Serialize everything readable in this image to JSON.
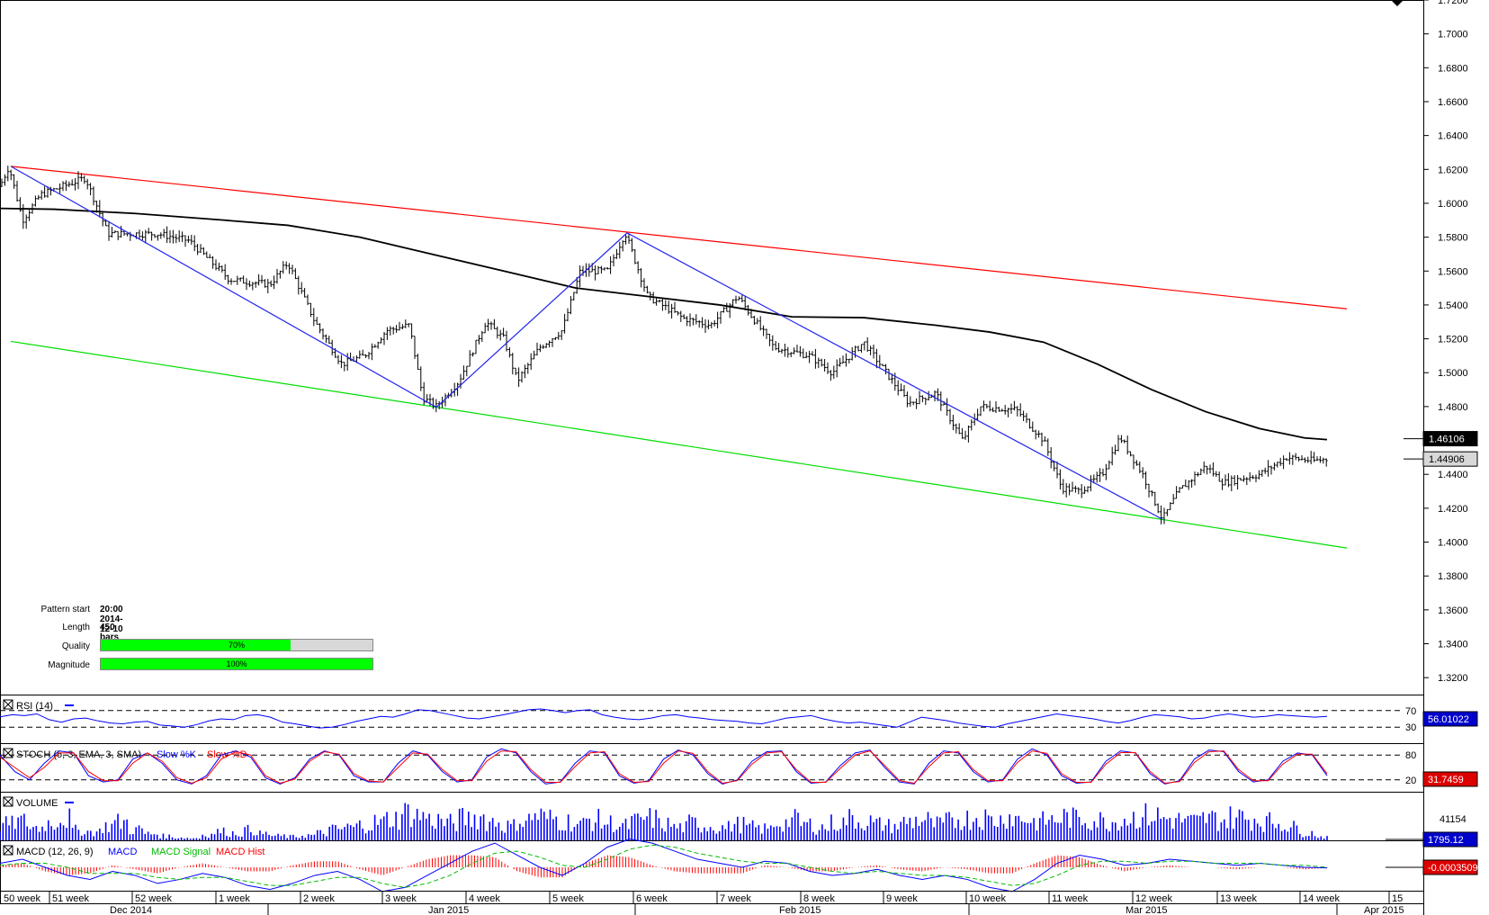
{
  "chart_data": [
    {
      "type": "candlestick",
      "pattern_info": {
        "pattern_start_label": "Pattern start",
        "pattern_start": "20:00 2014-12-10",
        "length_label": "Length",
        "length": "450 bars",
        "quality_label": "Quality",
        "quality": "70%",
        "quality_value": 0.7,
        "magnitude_label": "Magnitude",
        "magnitude": "100%",
        "magnitude_value": 1.0
      },
      "ylim": [
        1.31,
        1.72
      ],
      "y_ticks": [
        "1.7200",
        "1.7000",
        "1.6800",
        "1.6600",
        "1.6400",
        "1.6200",
        "1.6000",
        "1.5800",
        "1.5600",
        "1.5400",
        "1.5200",
        "1.5000",
        "1.4800",
        "1.4600",
        "1.4400",
        "1.4200",
        "1.4000",
        "1.3800",
        "1.3600",
        "1.3400",
        "1.3200"
      ],
      "y_tick_values": [
        1.72,
        1.7,
        1.68,
        1.66,
        1.64,
        1.62,
        1.6,
        1.58,
        1.56,
        1.54,
        1.52,
        1.5,
        1.48,
        1.46,
        1.44,
        1.42,
        1.4,
        1.38,
        1.36,
        1.34,
        1.32
      ],
      "price_path": [
        [
          0,
          1.61
        ],
        [
          10,
          1.6218
        ],
        [
          25,
          1.59
        ],
        [
          45,
          1.605
        ],
        [
          95,
          1.615
        ],
        [
          120,
          1.582
        ],
        [
          175,
          1.582
        ],
        [
          210,
          1.578
        ],
        [
          255,
          1.555
        ],
        [
          300,
          1.552
        ],
        [
          320,
          1.565
        ],
        [
          350,
          1.53
        ],
        [
          380,
          1.505
        ],
        [
          405,
          1.51
        ],
        [
          430,
          1.525
        ],
        [
          455,
          1.528
        ],
        [
          470,
          1.485
        ],
        [
          485,
          1.48
        ],
        [
          510,
          1.495
        ],
        [
          540,
          1.53
        ],
        [
          560,
          1.52
        ],
        [
          575,
          1.495
        ],
        [
          600,
          1.515
        ],
        [
          625,
          1.525
        ],
        [
          645,
          1.56
        ],
        [
          675,
          1.56
        ],
        [
          695,
          1.5825
        ],
        [
          720,
          1.545
        ],
        [
          760,
          1.532
        ],
        [
          790,
          1.528
        ],
        [
          820,
          1.545
        ],
        [
          840,
          1.53
        ],
        [
          860,
          1.515
        ],
        [
          900,
          1.51
        ],
        [
          925,
          1.5
        ],
        [
          960,
          1.518
        ],
        [
          985,
          1.5
        ],
        [
          1010,
          1.482
        ],
        [
          1040,
          1.488
        ],
        [
          1070,
          1.46
        ],
        [
          1090,
          1.48
        ],
        [
          1130,
          1.478
        ],
        [
          1160,
          1.46
        ],
        [
          1180,
          1.432
        ],
        [
          1200,
          1.43
        ],
        [
          1225,
          1.44
        ],
        [
          1245,
          1.462
        ],
        [
          1270,
          1.44
        ],
        [
          1292,
          1.4135
        ],
        [
          1310,
          1.43
        ],
        [
          1340,
          1.445
        ],
        [
          1360,
          1.435
        ],
        [
          1400,
          1.44
        ],
        [
          1430,
          1.45
        ],
        [
          1460,
          1.448
        ],
        [
          1475,
          1.449
        ]
      ],
      "moving_average": [
        [
          0,
          1.597
        ],
        [
          60,
          1.5965
        ],
        [
          150,
          1.594
        ],
        [
          250,
          1.59
        ],
        [
          320,
          1.587
        ],
        [
          400,
          1.58
        ],
        [
          480,
          1.57
        ],
        [
          560,
          1.56
        ],
        [
          640,
          1.55
        ],
        [
          720,
          1.545
        ],
        [
          800,
          1.54
        ],
        [
          880,
          1.533
        ],
        [
          960,
          1.5325
        ],
        [
          1040,
          1.528
        ],
        [
          1100,
          1.524
        ],
        [
          1160,
          1.518
        ],
        [
          1220,
          1.505
        ],
        [
          1280,
          1.49
        ],
        [
          1340,
          1.477
        ],
        [
          1400,
          1.467
        ],
        [
          1450,
          1.4615
        ],
        [
          1475,
          1.4605
        ]
      ],
      "zigzag": [
        [
          12,
          1.6218
        ],
        [
          485,
          1.4796
        ],
        [
          697,
          1.5825
        ],
        [
          1292,
          1.4135
        ]
      ],
      "upper_channel": [
        [
          12,
          1.6218
        ],
        [
          1497,
          1.5377
        ]
      ],
      "lower_channel": [
        [
          12,
          1.5185
        ],
        [
          1497,
          1.3965
        ]
      ],
      "current_price": "1.44906",
      "current_price_value": 1.44906,
      "ma_value": "1.46106",
      "ma_value_num": 1.46106
    },
    {
      "type": "line",
      "title": "RSI (14)",
      "levels": [
        "70",
        "30"
      ],
      "level_values": [
        70,
        30
      ],
      "ylim": [
        0,
        100
      ],
      "current_value": "56.01022",
      "series": [
        {
          "color": "#0000ff",
          "values": [
            55,
            60,
            58,
            62,
            48,
            42,
            50,
            52,
            45,
            40,
            38,
            42,
            44,
            35,
            33,
            30,
            36,
            45,
            50,
            48,
            58,
            60,
            54,
            42,
            38,
            33,
            28,
            30,
            36,
            44,
            50,
            56,
            54,
            62,
            72,
            70,
            64,
            58,
            52,
            50,
            55,
            60,
            66,
            72,
            74,
            70,
            65,
            70,
            72,
            60,
            54,
            50,
            48,
            52,
            58,
            60,
            55,
            52,
            48,
            46,
            44,
            40,
            38,
            45,
            52,
            55,
            58,
            50,
            44,
            40,
            42,
            38,
            34,
            30,
            42,
            54,
            50,
            46,
            40,
            36,
            32,
            30,
            38,
            44,
            50,
            56,
            62,
            58,
            54,
            50,
            44,
            40,
            46,
            54,
            60,
            58,
            55,
            50,
            52,
            58,
            62,
            58,
            54,
            56,
            60,
            58,
            56,
            54,
            56
          ]
        }
      ]
    },
    {
      "type": "line",
      "title": "STOCH (5, 3, EMA, 3, SMA)",
      "legend": [
        "Slow %K",
        "Slow %D"
      ],
      "levels": [
        "80",
        "20"
      ],
      "level_values": [
        80,
        20
      ],
      "ylim": [
        0,
        100
      ],
      "current_value": "31.7459",
      "series": [
        {
          "name": "Slow %K",
          "color": "#0000ff",
          "values": [
            80,
            40,
            20,
            60,
            90,
            85,
            30,
            15,
            20,
            70,
            85,
            60,
            20,
            10,
            30,
            80,
            90,
            75,
            25,
            10,
            25,
            70,
            90,
            80,
            30,
            15,
            15,
            60,
            90,
            80,
            40,
            15,
            20,
            75,
            95,
            85,
            40,
            10,
            15,
            60,
            90,
            85,
            30,
            12,
            18,
            70,
            92,
            80,
            35,
            10,
            20,
            65,
            88,
            90,
            40,
            12,
            15,
            55,
            85,
            92,
            50,
            15,
            10,
            60,
            90,
            85,
            40,
            15,
            20,
            70,
            95,
            80,
            30,
            12,
            15,
            65,
            90,
            85,
            35,
            10,
            18,
            70,
            92,
            88,
            40,
            15,
            20,
            65,
            85,
            80,
            30
          ]
        },
        {
          "name": "Slow %D",
          "color": "#ff0000",
          "values": [
            75,
            50,
            25,
            50,
            85,
            85,
            40,
            18,
            18,
            60,
            85,
            65,
            25,
            12,
            25,
            70,
            88,
            80,
            30,
            12,
            22,
            65,
            88,
            82,
            35,
            17,
            15,
            50,
            85,
            82,
            45,
            18,
            18,
            65,
            90,
            88,
            45,
            14,
            14,
            52,
            85,
            88,
            35,
            14,
            16,
            60,
            90,
            84,
            40,
            12,
            18,
            58,
            85,
            88,
            45,
            14,
            14,
            48,
            80,
            90,
            55,
            18,
            12,
            52,
            85,
            88,
            45,
            18,
            18,
            62,
            90,
            84,
            35,
            14,
            14,
            58,
            86,
            86,
            40,
            12,
            16,
            62,
            88,
            90,
            45,
            18,
            18,
            58,
            82,
            82,
            35
          ]
        }
      ]
    },
    {
      "type": "bar",
      "title": "VOLUME",
      "current_value": "1795.12",
      "max_label": "41154",
      "ylim": [
        0,
        46000
      ],
      "values_note": "",
      "series": [
        {
          "color": "#0000ff",
          "values": [
            22000,
            26000,
            18000,
            24000,
            30000,
            14000,
            12000,
            20000,
            25000,
            15000,
            9000,
            6000,
            4000,
            3000,
            8000,
            12000,
            10000,
            14000,
            9000,
            6000,
            5000,
            7000,
            10000,
            15000,
            18000,
            22000,
            25000,
            30000,
            38000,
            34000,
            28000,
            24000,
            30000,
            32000,
            26000,
            20000,
            28000,
            34000,
            30000,
            26000,
            22000,
            28000,
            24000,
            20000,
            26000,
            30000,
            22000,
            18000,
            24000,
            20000,
            18000,
            22000,
            18000,
            16000,
            24000,
            28000,
            22000,
            18000,
            24000,
            30000,
            26000,
            22000,
            20000,
            26000,
            28000,
            22000,
            26000,
            30000,
            32000,
            28000,
            34000,
            30000,
            26000,
            28000,
            32000,
            30000,
            28000,
            26000,
            30000,
            32000,
            34000,
            30000,
            28000,
            26000,
            30000,
            28000,
            32000,
            30000,
            26000,
            24000,
            18000,
            10000,
            5000
          ]
        }
      ]
    },
    {
      "type": "line",
      "title": "MACD (12, 26, 9)",
      "legend": [
        "MACD",
        "MACD Signal",
        "MACD Hist"
      ],
      "current_value": "-0.0003509",
      "ylim": [
        -0.02,
        0.02
      ],
      "series": [
        {
          "name": "MACD",
          "color": "#0000ff",
          "values": [
            0.002,
            0.004,
            0.0,
            -0.004,
            -0.006,
            -0.002,
            -0.004,
            -0.008,
            -0.006,
            -0.003,
            -0.005,
            -0.009,
            -0.011,
            -0.008,
            -0.004,
            -0.002,
            -0.006,
            -0.012,
            -0.01,
            -0.004,
            0.002,
            0.008,
            0.012,
            0.006,
            0.0,
            -0.004,
            0.002,
            0.01,
            0.014,
            0.012,
            0.008,
            0.004,
            0.002,
            0.0,
            0.003,
            0.002,
            -0.002,
            -0.004,
            -0.003,
            -0.001,
            -0.004,
            -0.006,
            -0.004,
            -0.006,
            -0.01,
            -0.012,
            -0.006,
            0.002,
            0.006,
            0.004,
            0.001,
            0.002,
            0.004,
            0.003,
            0.002,
            0.001,
            0.002,
            0.001,
            0.0,
            -0.0003
          ]
        },
        {
          "name": "MACD Signal",
          "color": "#00cc00",
          "values": [
            0.001,
            0.002,
            0.002,
            0.0,
            -0.003,
            -0.003,
            -0.003,
            -0.005,
            -0.006,
            -0.005,
            -0.005,
            -0.007,
            -0.009,
            -0.009,
            -0.007,
            -0.005,
            -0.005,
            -0.008,
            -0.01,
            -0.008,
            -0.004,
            0.002,
            0.007,
            0.008,
            0.005,
            0.001,
            0.0,
            0.004,
            0.009,
            0.011,
            0.01,
            0.007,
            0.005,
            0.003,
            0.002,
            0.002,
            0.0,
            -0.002,
            -0.003,
            -0.002,
            -0.003,
            -0.004,
            -0.004,
            -0.005,
            -0.007,
            -0.009,
            -0.008,
            -0.004,
            0.001,
            0.003,
            0.003,
            0.002,
            0.003,
            0.003,
            0.002,
            0.002,
            0.002,
            0.001,
            0.001,
            0.0
          ]
        },
        {
          "name": "MACD Hist",
          "color": "#ff0000",
          "values": [
            0.001,
            0.002,
            -0.002,
            -0.004,
            -0.003,
            0.001,
            -0.001,
            -0.003,
            0.0,
            0.002,
            0.0,
            -0.002,
            -0.002,
            0.001,
            0.003,
            0.003,
            -0.001,
            -0.004,
            0.0,
            0.004,
            0.006,
            0.006,
            0.005,
            -0.002,
            -0.005,
            -0.005,
            0.002,
            0.006,
            0.005,
            0.001,
            -0.002,
            -0.003,
            -0.003,
            -0.003,
            0.001,
            0.0,
            -0.002,
            -0.002,
            0.0,
            0.001,
            -0.001,
            -0.002,
            0.0,
            -0.001,
            -0.003,
            -0.003,
            0.002,
            0.006,
            0.005,
            0.001,
            -0.002,
            0.0,
            0.001,
            0.0,
            0.0,
            -0.001,
            0.0,
            0.0,
            -0.001,
            -0.0003
          ]
        }
      ]
    },
    {
      "type": "axis",
      "week_labels": [
        "50 week",
        "51 week",
        "52 week",
        "1 week",
        "2 week",
        "3 week",
        "4 week",
        "5 week",
        "6 week",
        "7 week",
        "8 week",
        "9 week",
        "10 week",
        "11 week",
        "12 week",
        "13 week",
        "14 week",
        "15"
      ],
      "month_labels": [
        "Dec 2014",
        "Jan 2015",
        "Feb 2015",
        "Mar 2015",
        "Apr 2015"
      ]
    }
  ]
}
